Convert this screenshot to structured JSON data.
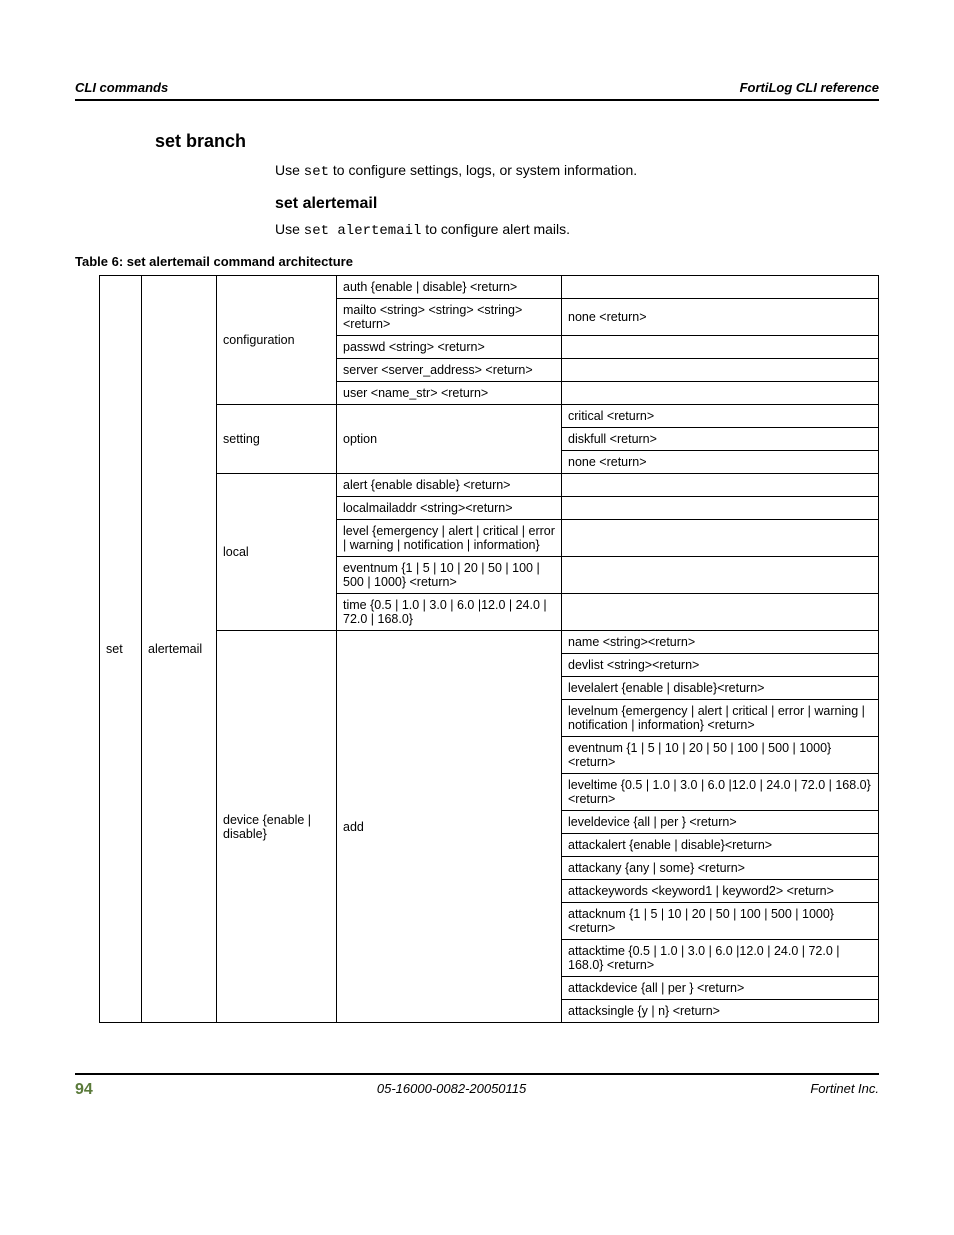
{
  "header": {
    "left": "CLI commands",
    "right": "FortiLog CLI reference"
  },
  "section": {
    "h1": "set branch",
    "intro_prefix": "Use ",
    "intro_cmd": "set",
    "intro_suffix": " to configure settings, logs, or system information.",
    "h2": "set alertemail",
    "sub_prefix": "Use ",
    "sub_cmd": "set alertemail",
    "sub_suffix": " to configure alert mails.",
    "table_caption": "Table 6: set alertemail command architecture"
  },
  "table": {
    "col1": "set",
    "col2": "alertemail",
    "groups": [
      {
        "name": "configuration",
        "rows": [
          {
            "c4": "auth {enable | disable} <return>",
            "c5": ""
          },
          {
            "c4": "mailto <string> <string> <string> <return>",
            "c5": "none <return>"
          },
          {
            "c4": "passwd <string> <return>",
            "c5": ""
          },
          {
            "c4": "server <server_address> <return>",
            "c5": ""
          },
          {
            "c4": "user <name_str> <return>",
            "c5": ""
          }
        ]
      },
      {
        "name": "setting",
        "sub4": "option",
        "rows": [
          {
            "c5": "critical <return>"
          },
          {
            "c5": "diskfull <return>"
          },
          {
            "c5": "none <return>"
          }
        ]
      },
      {
        "name": "local",
        "rows": [
          {
            "c4": "alert {enable disable} <return>",
            "c5": ""
          },
          {
            "c4": "localmailaddr <string><return>",
            "c5": ""
          },
          {
            "c4": "level {emergency | alert | critical | error | warning | notification | information}",
            "c5": ""
          },
          {
            "c4": "eventnum {1 | 5 | 10 | 20 | 50 | 100 | 500 | 1000} <return>",
            "c5": ""
          },
          {
            "c4": "time {0.5 | 1.0 | 3.0 | 6.0 |12.0 | 24.0 | 72.0 | 168.0}",
            "c5": ""
          }
        ]
      },
      {
        "name": "device {enable | disable}",
        "sub4": "add",
        "rows": [
          {
            "c5": "name <string><return>"
          },
          {
            "c5": "devlist <string><return>"
          },
          {
            "c5": "levelalert {enable | disable}<return>"
          },
          {
            "c5": "levelnum {emergency | alert | critical | error | warning | notification | information} <return>"
          },
          {
            "c5": "eventnum {1 | 5 | 10 | 20 | 50 | 100 | 500 | 1000} <return>"
          },
          {
            "c5": "leveltime {0.5 | 1.0 | 3.0 | 6.0 |12.0 | 24.0 | 72.0 | 168.0} <return>"
          },
          {
            "c5": "leveldevice {all | per } <return>"
          },
          {
            "c5": "attackalert {enable | disable}<return>"
          },
          {
            "c5": "attackany {any | some} <return>"
          },
          {
            "c5": "attackeywords <keyword1 | keyword2> <return>"
          },
          {
            "c5": "attacknum {1 | 5 | 10 | 20 | 50 | 100 | 500 | 1000} <return>"
          },
          {
            "c5": "attacktime {0.5 | 1.0 | 3.0 | 6.0 |12.0 | 24.0 | 72.0 | 168.0} <return>"
          },
          {
            "c5": "attackdevice {all | per } <return>"
          },
          {
            "c5": "attacksingle {y | n} <return>"
          }
        ]
      }
    ]
  },
  "footer": {
    "page": "94",
    "center": "05-16000-0082-20050115",
    "right": "Fortinet Inc."
  }
}
